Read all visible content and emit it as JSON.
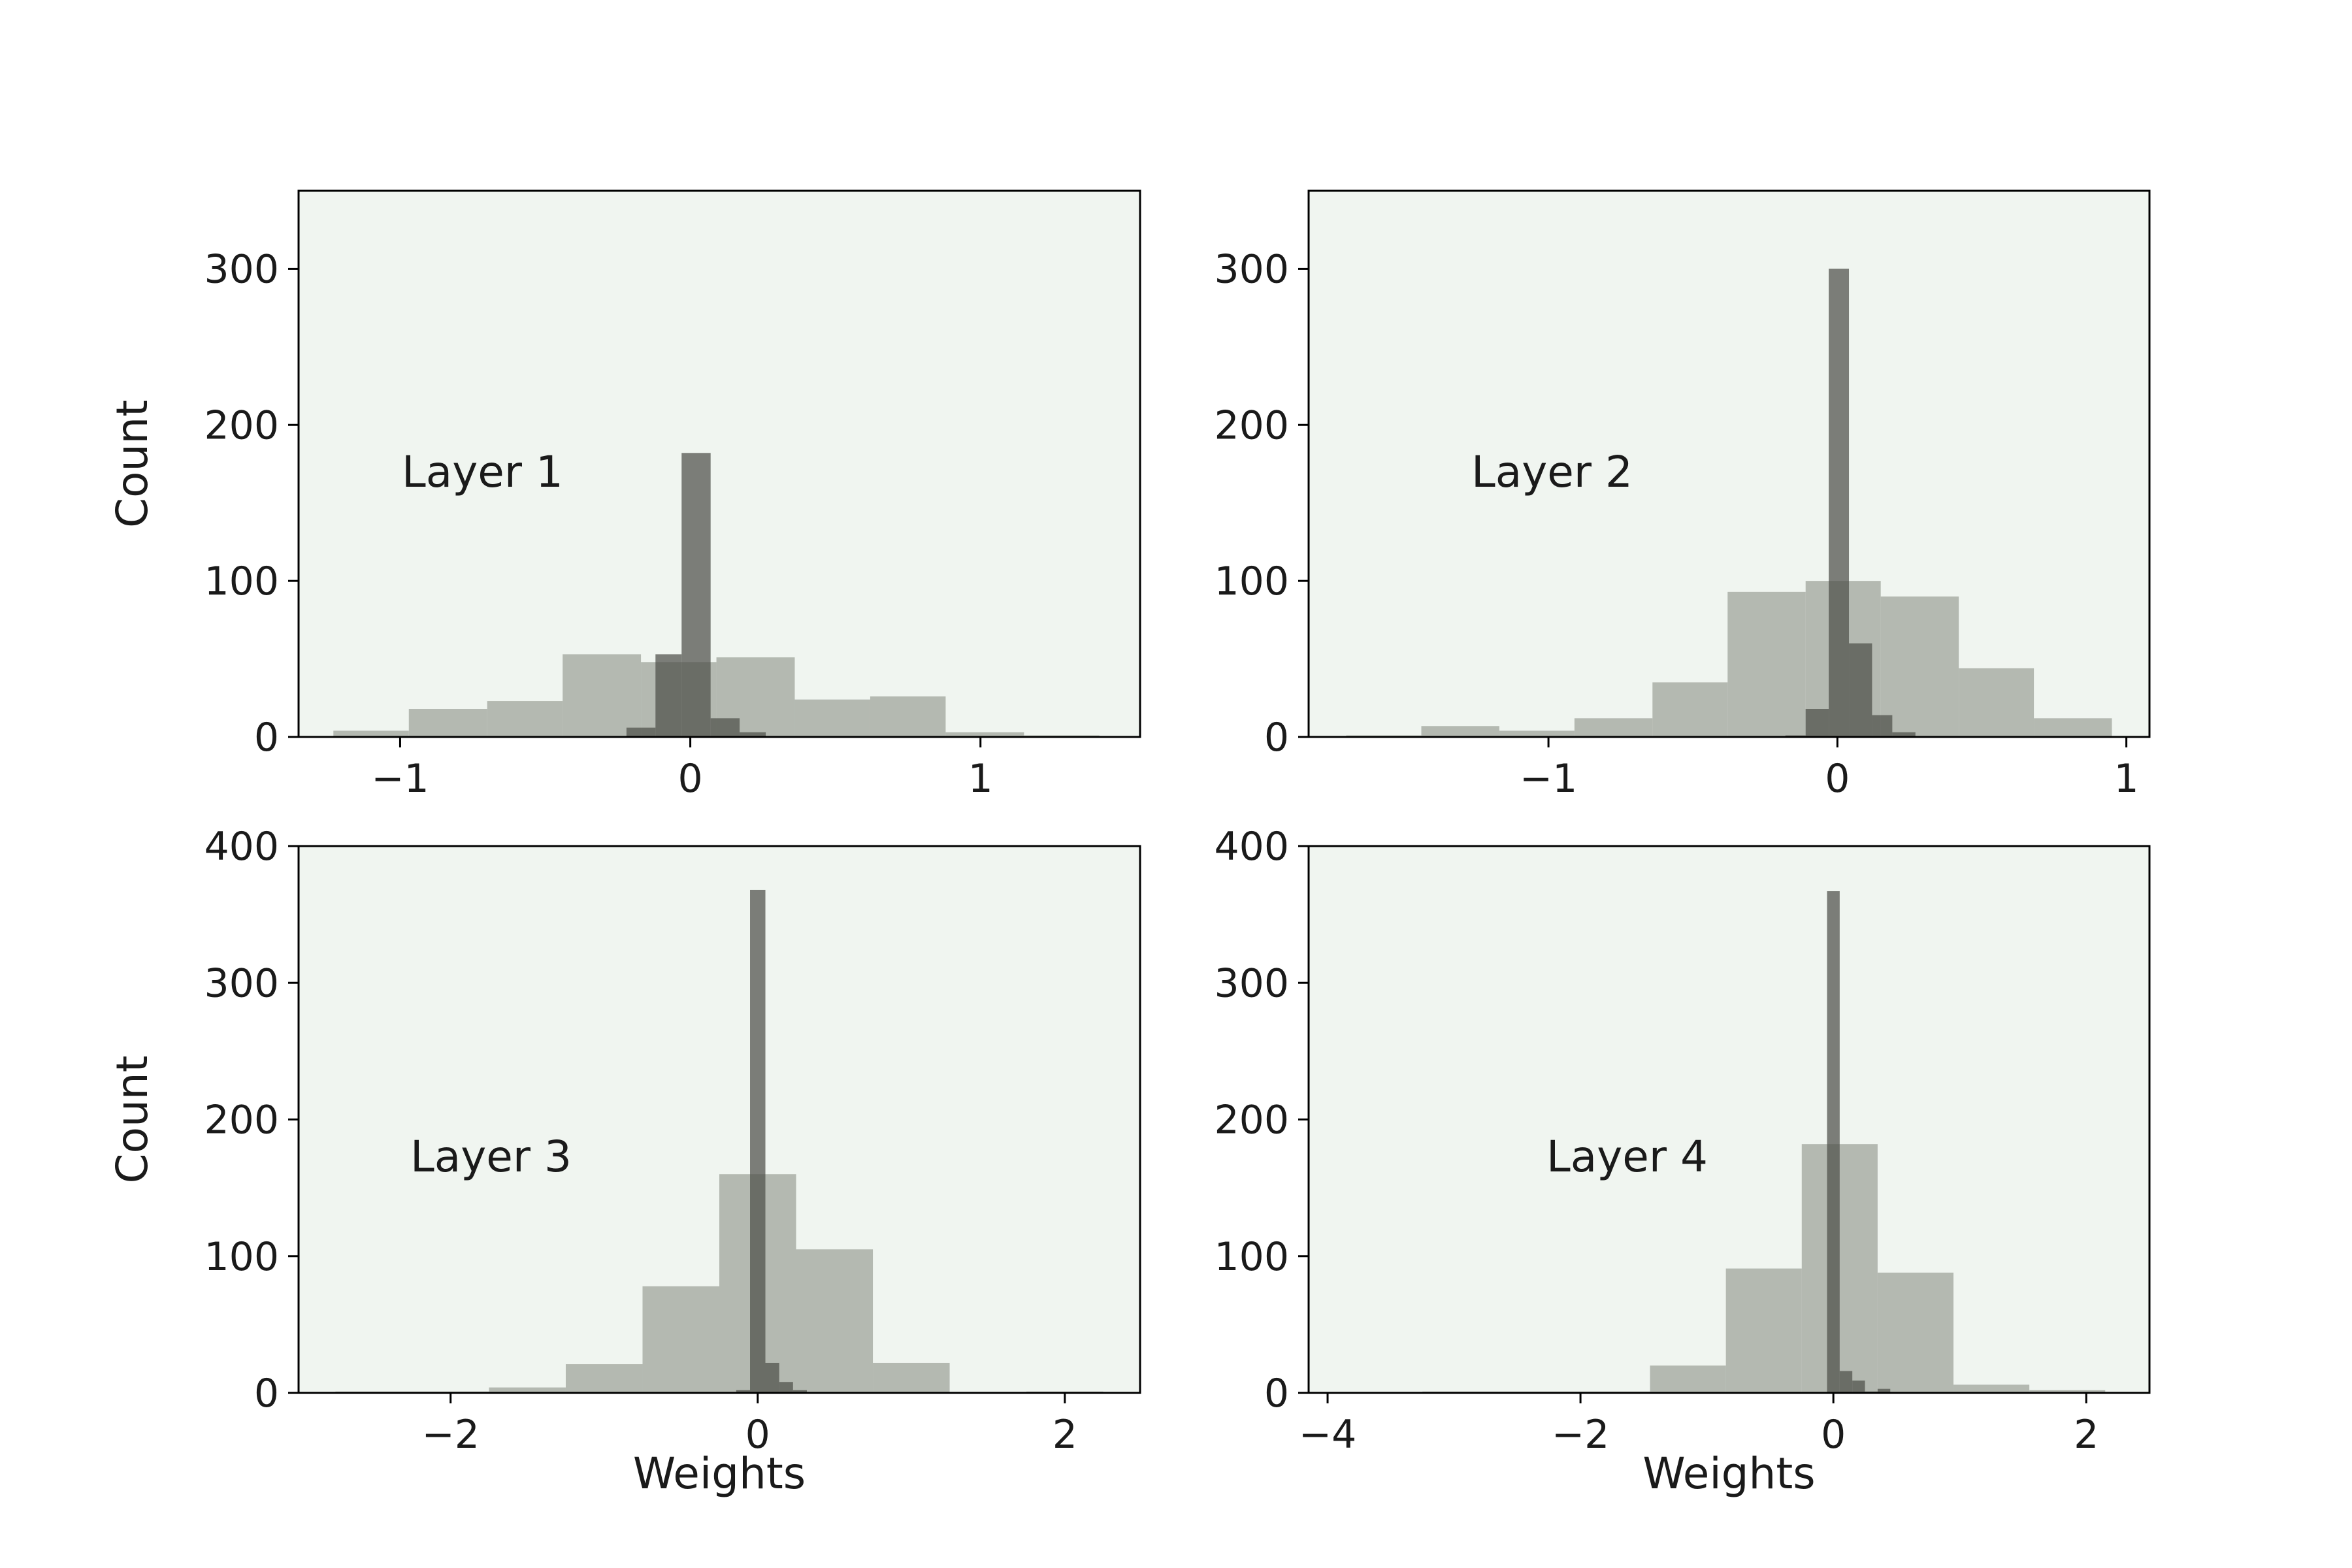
{
  "chart_data": [
    {
      "type": "bar",
      "panel": "top-left",
      "annotation": "Layer 1",
      "xlabel": "",
      "ylabel": "Count",
      "xlim": [
        -1.35,
        1.55
      ],
      "ylim": [
        0,
        350
      ],
      "xticks": [
        -1,
        0,
        1
      ],
      "xtick_labels": [
        "−1",
        "0",
        "1"
      ],
      "yticks": [
        0,
        100,
        200,
        300
      ],
      "ytick_labels": [
        "0",
        "100",
        "200",
        "300"
      ],
      "background": "#f0f5f0",
      "series": [
        {
          "color": "#a3a89f",
          "opacity": 0.78,
          "bins": [
            {
              "x0": -1.23,
              "x1": -0.97,
              "count": 4
            },
            {
              "x0": -0.97,
              "x1": -0.7,
              "count": 18
            },
            {
              "x0": -0.7,
              "x1": -0.44,
              "count": 23
            },
            {
              "x0": -0.44,
              "x1": -0.17,
              "count": 53
            },
            {
              "x0": -0.17,
              "x1": 0.09,
              "count": 48
            },
            {
              "x0": 0.09,
              "x1": 0.36,
              "count": 51
            },
            {
              "x0": 0.36,
              "x1": 0.62,
              "count": 24
            },
            {
              "x0": 0.62,
              "x1": 0.88,
              "count": 26
            },
            {
              "x0": 0.88,
              "x1": 1.15,
              "count": 3
            },
            {
              "x0": 1.15,
              "x1": 1.41,
              "count": 1
            }
          ]
        },
        {
          "color": "#4d4f4a",
          "opacity": 0.72,
          "bins": [
            {
              "x0": -0.22,
              "x1": -0.12,
              "count": 6
            },
            {
              "x0": -0.12,
              "x1": -0.03,
              "count": 53
            },
            {
              "x0": -0.03,
              "x1": 0.07,
              "count": 182
            },
            {
              "x0": 0.07,
              "x1": 0.17,
              "count": 12
            },
            {
              "x0": 0.17,
              "x1": 0.26,
              "count": 3
            }
          ]
        }
      ]
    },
    {
      "type": "bar",
      "panel": "top-right",
      "annotation": "Layer 2",
      "xlabel": "",
      "ylabel": "",
      "xlim": [
        -1.83,
        1.08
      ],
      "ylim": [
        0,
        350
      ],
      "xticks": [
        -1,
        0,
        1
      ],
      "xtick_labels": [
        "−1",
        "0",
        "1"
      ],
      "yticks": [
        0,
        100,
        200,
        300
      ],
      "ytick_labels": [
        "0",
        "100",
        "200",
        "300"
      ],
      "background": "#f0f5f0",
      "series": [
        {
          "color": "#a3a89f",
          "opacity": 0.78,
          "bins": [
            {
              "x0": -1.7,
              "x1": -1.44,
              "count": 1
            },
            {
              "x0": -1.44,
              "x1": -1.17,
              "count": 7
            },
            {
              "x0": -1.17,
              "x1": -0.91,
              "count": 4
            },
            {
              "x0": -0.91,
              "x1": -0.64,
              "count": 12
            },
            {
              "x0": -0.64,
              "x1": -0.38,
              "count": 35
            },
            {
              "x0": -0.38,
              "x1": -0.11,
              "count": 93
            },
            {
              "x0": -0.11,
              "x1": 0.15,
              "count": 100
            },
            {
              "x0": 0.15,
              "x1": 0.42,
              "count": 90
            },
            {
              "x0": 0.42,
              "x1": 0.68,
              "count": 44
            },
            {
              "x0": 0.68,
              "x1": 0.95,
              "count": 12
            }
          ]
        },
        {
          "color": "#4d4f4a",
          "opacity": 0.72,
          "bins": [
            {
              "x0": -0.18,
              "x1": -0.11,
              "count": 1
            },
            {
              "x0": -0.11,
              "x1": -0.03,
              "count": 18
            },
            {
              "x0": -0.03,
              "x1": 0.04,
              "count": 300
            },
            {
              "x0": 0.04,
              "x1": 0.12,
              "count": 60
            },
            {
              "x0": 0.12,
              "x1": 0.19,
              "count": 14
            },
            {
              "x0": 0.19,
              "x1": 0.27,
              "count": 3
            }
          ]
        }
      ]
    },
    {
      "type": "bar",
      "panel": "bottom-left",
      "annotation": "Layer 3",
      "xlabel": "Weights",
      "ylabel": "Count",
      "xlim": [
        -2.99,
        2.49
      ],
      "ylim": [
        0,
        400
      ],
      "xticks": [
        -2,
        0,
        2
      ],
      "xtick_labels": [
        "−2",
        "0",
        "2"
      ],
      "yticks": [
        0,
        100,
        200,
        300,
        400
      ],
      "ytick_labels": [
        "0",
        "100",
        "200",
        "300",
        "400"
      ],
      "background": "#f0f5f0",
      "series": [
        {
          "color": "#a3a89f",
          "opacity": 0.78,
          "bins": [
            {
              "x0": -2.75,
              "x1": -2.25,
              "count": 1
            },
            {
              "x0": -2.25,
              "x1": -1.75,
              "count": 1
            },
            {
              "x0": -1.75,
              "x1": -1.25,
              "count": 4
            },
            {
              "x0": -1.25,
              "x1": -0.75,
              "count": 21
            },
            {
              "x0": -0.75,
              "x1": -0.25,
              "count": 78
            },
            {
              "x0": -0.25,
              "x1": 0.25,
              "count": 160
            },
            {
              "x0": 0.25,
              "x1": 0.75,
              "count": 105
            },
            {
              "x0": 0.75,
              "x1": 1.25,
              "count": 22
            },
            {
              "x0": 1.25,
              "x1": 1.75,
              "count": 0
            },
            {
              "x0": 1.75,
              "x1": 2.25,
              "count": 1
            }
          ]
        },
        {
          "color": "#4d4f4a",
          "opacity": 0.72,
          "bins": [
            {
              "x0": -0.14,
              "x1": -0.05,
              "count": 2
            },
            {
              "x0": -0.05,
              "x1": 0.05,
              "count": 368
            },
            {
              "x0": 0.05,
              "x1": 0.14,
              "count": 22
            },
            {
              "x0": 0.14,
              "x1": 0.23,
              "count": 8
            },
            {
              "x0": 0.23,
              "x1": 0.32,
              "count": 2
            }
          ]
        }
      ]
    },
    {
      "type": "bar",
      "panel": "bottom-right",
      "annotation": "Layer 4",
      "xlabel": "Weights",
      "ylabel": "",
      "xlim": [
        -4.15,
        2.5
      ],
      "ylim": [
        0,
        400
      ],
      "xticks": [
        -4,
        -2,
        0,
        2
      ],
      "xtick_labels": [
        "−4",
        "−2",
        "0",
        "2"
      ],
      "yticks": [
        0,
        100,
        200,
        300,
        400
      ],
      "ytick_labels": [
        "0",
        "100",
        "200",
        "300",
        "400"
      ],
      "background": "#f0f5f0",
      "series": [
        {
          "color": "#a3a89f",
          "opacity": 0.78,
          "bins": [
            {
              "x0": -3.85,
              "x1": -3.25,
              "count": 0
            },
            {
              "x0": -3.25,
              "x1": -2.65,
              "count": 1
            },
            {
              "x0": -2.65,
              "x1": -2.05,
              "count": 1
            },
            {
              "x0": -2.05,
              "x1": -1.45,
              "count": 1
            },
            {
              "x0": -1.45,
              "x1": -0.85,
              "count": 20
            },
            {
              "x0": -0.85,
              "x1": -0.25,
              "count": 91
            },
            {
              "x0": -0.25,
              "x1": 0.35,
              "count": 182
            },
            {
              "x0": 0.35,
              "x1": 0.95,
              "count": 88
            },
            {
              "x0": 0.95,
              "x1": 1.55,
              "count": 6
            },
            {
              "x0": 1.55,
              "x1": 2.15,
              "count": 2
            }
          ]
        },
        {
          "color": "#4d4f4a",
          "opacity": 0.72,
          "bins": [
            {
              "x0": -0.05,
              "x1": 0.05,
              "count": 367
            },
            {
              "x0": 0.05,
              "x1": 0.15,
              "count": 16
            },
            {
              "x0": 0.15,
              "x1": 0.25,
              "count": 9
            },
            {
              "x0": 0.25,
              "x1": 0.35,
              "count": 1
            },
            {
              "x0": 0.35,
              "x1": 0.45,
              "count": 3
            }
          ]
        }
      ]
    }
  ]
}
